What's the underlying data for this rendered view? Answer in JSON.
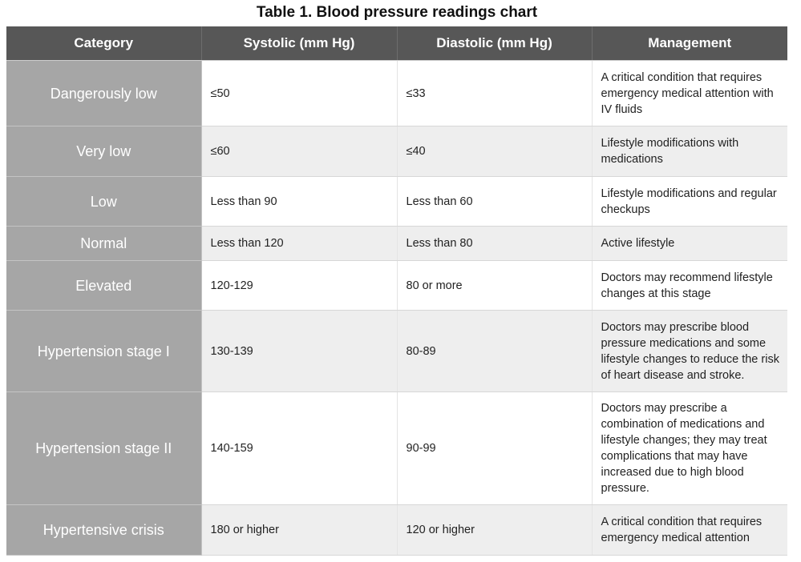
{
  "table": {
    "caption": "Table 1. Blood pressure readings chart",
    "headers": {
      "category": "Category",
      "systolic": "Systolic (mm Hg)",
      "diastolic": "Diastolic (mm Hg)",
      "management": "Management"
    },
    "rows": [
      {
        "category": "Dangerously low",
        "systolic": "≤50",
        "diastolic": "≤33",
        "management": "A critical condition that requires emergency medical attention with IV fluids"
      },
      {
        "category": "Very low",
        "systolic": "≤60",
        "diastolic": "≤40",
        "management": "Lifestyle modifications with medications"
      },
      {
        "category": "Low",
        "systolic": "Less than 90",
        "diastolic": "Less than 60",
        "management": "Lifestyle modifications and regular checkups"
      },
      {
        "category": "Normal",
        "systolic": "Less than 120",
        "diastolic": "Less than 80",
        "management": "Active lifestyle"
      },
      {
        "category": "Elevated",
        "systolic": "120-129",
        "diastolic": "80 or more",
        "management": "Doctors may recommend lifestyle changes at this stage"
      },
      {
        "category": "Hypertension stage I",
        "systolic": "130-139",
        "diastolic": "80-89",
        "management": "Doctors may prescribe blood pressure medications and some lifestyle changes to reduce the risk of heart disease and stroke."
      },
      {
        "category": "Hypertension stage II",
        "systolic": "140-159",
        "diastolic": "90-99",
        "management": "Doctors may prescribe a combination of medications and lifestyle changes; they may treat complications that may have increased due to high blood pressure."
      },
      {
        "category": "Hypertensive crisis",
        "systolic": "180 or higher",
        "diastolic": "120 or higher",
        "management": "A critical condition that requires emergency medical attention"
      }
    ]
  }
}
